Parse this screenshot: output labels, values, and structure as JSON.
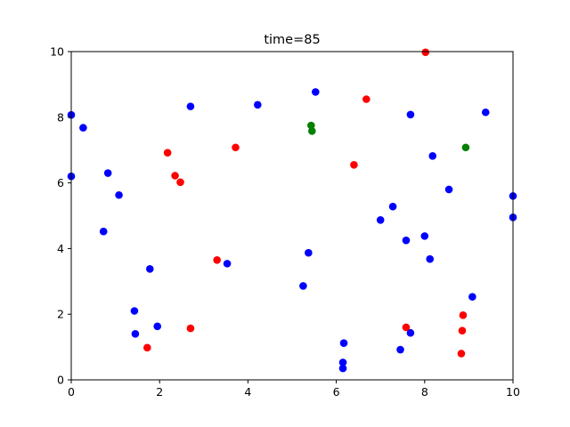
{
  "chart_data": {
    "type": "scatter",
    "title": "time=85",
    "xlabel": "",
    "ylabel": "",
    "xlim": [
      0,
      10
    ],
    "ylim": [
      0,
      10
    ],
    "xticks": [
      0,
      2,
      4,
      6,
      8,
      10
    ],
    "yticks": [
      0,
      2,
      4,
      6,
      8,
      10
    ],
    "grid": false,
    "series": [
      {
        "color": "#0000ff",
        "points": [
          [
            0.0,
            8.07
          ],
          [
            0.0,
            6.2
          ],
          [
            0.27,
            7.68
          ],
          [
            0.83,
            6.3
          ],
          [
            1.08,
            5.63
          ],
          [
            0.73,
            4.52
          ],
          [
            1.78,
            3.38
          ],
          [
            1.43,
            2.1
          ],
          [
            1.45,
            1.4
          ],
          [
            1.95,
            1.63
          ],
          [
            2.7,
            8.33
          ],
          [
            3.53,
            3.54
          ],
          [
            4.22,
            8.38
          ],
          [
            5.25,
            2.86
          ],
          [
            5.37,
            3.87
          ],
          [
            5.53,
            8.77
          ],
          [
            6.17,
            1.12
          ],
          [
            6.15,
            0.53
          ],
          [
            6.15,
            0.35
          ],
          [
            7.0,
            4.87
          ],
          [
            7.28,
            5.28
          ],
          [
            7.45,
            0.92
          ],
          [
            7.58,
            4.25
          ],
          [
            7.68,
            8.08
          ],
          [
            7.68,
            1.43
          ],
          [
            8.0,
            4.38
          ],
          [
            8.12,
            3.68
          ],
          [
            8.18,
            6.82
          ],
          [
            8.55,
            5.8
          ],
          [
            9.08,
            2.53
          ],
          [
            9.38,
            8.15
          ],
          [
            10.0,
            5.6
          ],
          [
            10.0,
            4.95
          ]
        ]
      },
      {
        "color": "#ff0000",
        "points": [
          [
            1.72,
            0.98
          ],
          [
            2.18,
            6.92
          ],
          [
            2.35,
            6.22
          ],
          [
            2.47,
            6.02
          ],
          [
            2.7,
            1.57
          ],
          [
            3.3,
            3.65
          ],
          [
            3.72,
            7.08
          ],
          [
            6.4,
            6.55
          ],
          [
            6.68,
            8.55
          ],
          [
            7.58,
            1.6
          ],
          [
            8.02,
            9.98
          ],
          [
            8.83,
            0.8
          ],
          [
            8.85,
            1.5
          ],
          [
            8.87,
            1.97
          ]
        ]
      },
      {
        "color": "#008000",
        "points": [
          [
            5.43,
            7.75
          ],
          [
            5.45,
            7.58
          ],
          [
            8.93,
            7.08
          ]
        ]
      }
    ]
  }
}
